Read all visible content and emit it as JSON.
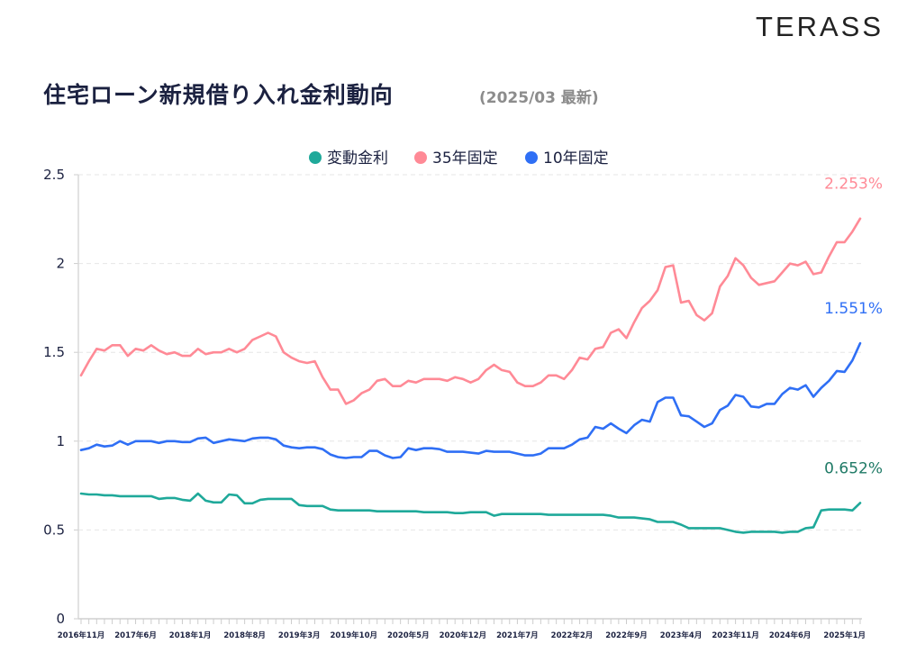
{
  "logo": "TERASS",
  "title": "住宅ローン新規借り入れ金利動向",
  "subtitle": "(2025/03 最新)",
  "chart_data": {
    "type": "line",
    "title": "住宅ローン新規借り入れ金利動向",
    "xlabel": "",
    "ylabel": "",
    "ylim": [
      0,
      2.5
    ],
    "yticks": [
      "0",
      "0.5",
      "1",
      "1.5",
      "2",
      "2.5"
    ],
    "yticks_values": [
      0,
      0.5,
      1,
      1.5,
      2,
      2.5
    ],
    "grid": true,
    "legend_position": "top-center",
    "x_start": "2016年11月",
    "x_end": "2025年3月",
    "x_count": 101,
    "xtick_labels": [
      "2016年11月",
      "2017年6月",
      "2018年1月",
      "2018年8月",
      "2019年3月",
      "2019年10月",
      "2020年5月",
      "2020年12月",
      "2021年7月",
      "2022年2月",
      "2022年9月",
      "2023年4月",
      "2023年11月",
      "2024年6月",
      "2025年1月"
    ],
    "xtick_every": 7,
    "series": [
      {
        "name": "変動金利",
        "color": "#1fa99a",
        "label_color": "#1f7a66",
        "end_label": "0.652%",
        "values": [
          0.705,
          0.7,
          0.7,
          0.695,
          0.695,
          0.69,
          0.69,
          0.69,
          0.69,
          0.69,
          0.675,
          0.68,
          0.68,
          0.67,
          0.665,
          0.705,
          0.665,
          0.655,
          0.655,
          0.7,
          0.695,
          0.65,
          0.65,
          0.67,
          0.675,
          0.675,
          0.675,
          0.675,
          0.64,
          0.635,
          0.635,
          0.635,
          0.615,
          0.61,
          0.61,
          0.61,
          0.61,
          0.61,
          0.605,
          0.605,
          0.605,
          0.605,
          0.605,
          0.605,
          0.6,
          0.6,
          0.6,
          0.6,
          0.595,
          0.595,
          0.6,
          0.6,
          0.6,
          0.58,
          0.59,
          0.59,
          0.59,
          0.59,
          0.59,
          0.59,
          0.585,
          0.585,
          0.585,
          0.585,
          0.585,
          0.585,
          0.585,
          0.585,
          0.58,
          0.57,
          0.57,
          0.57,
          0.565,
          0.56,
          0.545,
          0.545,
          0.545,
          0.53,
          0.51,
          0.51,
          0.51,
          0.51,
          0.51,
          0.5,
          0.49,
          0.485,
          0.49,
          0.49,
          0.49,
          0.49,
          0.485,
          0.49,
          0.49,
          0.51,
          0.515,
          0.61,
          0.615,
          0.615,
          0.615,
          0.61,
          0.652
        ]
      },
      {
        "name": "35年固定",
        "color": "#ff8a96",
        "label_color": "#ff8a96",
        "end_label": "2.253%",
        "values": [
          1.37,
          1.45,
          1.52,
          1.51,
          1.54,
          1.54,
          1.48,
          1.52,
          1.51,
          1.54,
          1.51,
          1.49,
          1.5,
          1.48,
          1.48,
          1.52,
          1.49,
          1.5,
          1.5,
          1.52,
          1.5,
          1.52,
          1.57,
          1.59,
          1.61,
          1.59,
          1.5,
          1.47,
          1.45,
          1.44,
          1.45,
          1.36,
          1.29,
          1.29,
          1.21,
          1.23,
          1.27,
          1.29,
          1.34,
          1.35,
          1.31,
          1.31,
          1.34,
          1.33,
          1.35,
          1.35,
          1.35,
          1.34,
          1.36,
          1.35,
          1.33,
          1.35,
          1.4,
          1.43,
          1.4,
          1.39,
          1.33,
          1.31,
          1.31,
          1.33,
          1.37,
          1.37,
          1.35,
          1.4,
          1.47,
          1.46,
          1.52,
          1.53,
          1.61,
          1.63,
          1.58,
          1.67,
          1.75,
          1.79,
          1.85,
          1.98,
          1.99,
          1.78,
          1.79,
          1.71,
          1.68,
          1.72,
          1.87,
          1.93,
          2.03,
          1.99,
          1.92,
          1.88,
          1.89,
          1.9,
          1.95,
          2.0,
          1.99,
          2.01,
          1.94,
          1.95,
          2.04,
          2.12,
          2.12,
          2.18,
          2.253
        ]
      },
      {
        "name": "10年固定",
        "color": "#2f6ff5",
        "label_color": "#2f6ff5",
        "end_label": "1.551%",
        "values": [
          0.95,
          0.96,
          0.98,
          0.97,
          0.975,
          1.0,
          0.98,
          1.0,
          1.0,
          1.0,
          0.99,
          1.0,
          1.0,
          0.995,
          0.995,
          1.015,
          1.02,
          0.99,
          1.0,
          1.01,
          1.005,
          1.0,
          1.015,
          1.02,
          1.02,
          1.01,
          0.975,
          0.965,
          0.96,
          0.965,
          0.965,
          0.955,
          0.925,
          0.91,
          0.905,
          0.91,
          0.91,
          0.945,
          0.945,
          0.92,
          0.905,
          0.91,
          0.96,
          0.95,
          0.96,
          0.96,
          0.955,
          0.94,
          0.94,
          0.94,
          0.935,
          0.93,
          0.945,
          0.94,
          0.94,
          0.94,
          0.93,
          0.92,
          0.92,
          0.93,
          0.96,
          0.96,
          0.96,
          0.98,
          1.01,
          1.02,
          1.08,
          1.07,
          1.1,
          1.07,
          1.045,
          1.09,
          1.12,
          1.11,
          1.22,
          1.245,
          1.245,
          1.145,
          1.14,
          1.11,
          1.08,
          1.1,
          1.175,
          1.2,
          1.26,
          1.25,
          1.195,
          1.19,
          1.21,
          1.21,
          1.265,
          1.3,
          1.29,
          1.315,
          1.25,
          1.3,
          1.34,
          1.395,
          1.39,
          1.455,
          1.551
        ]
      }
    ]
  }
}
